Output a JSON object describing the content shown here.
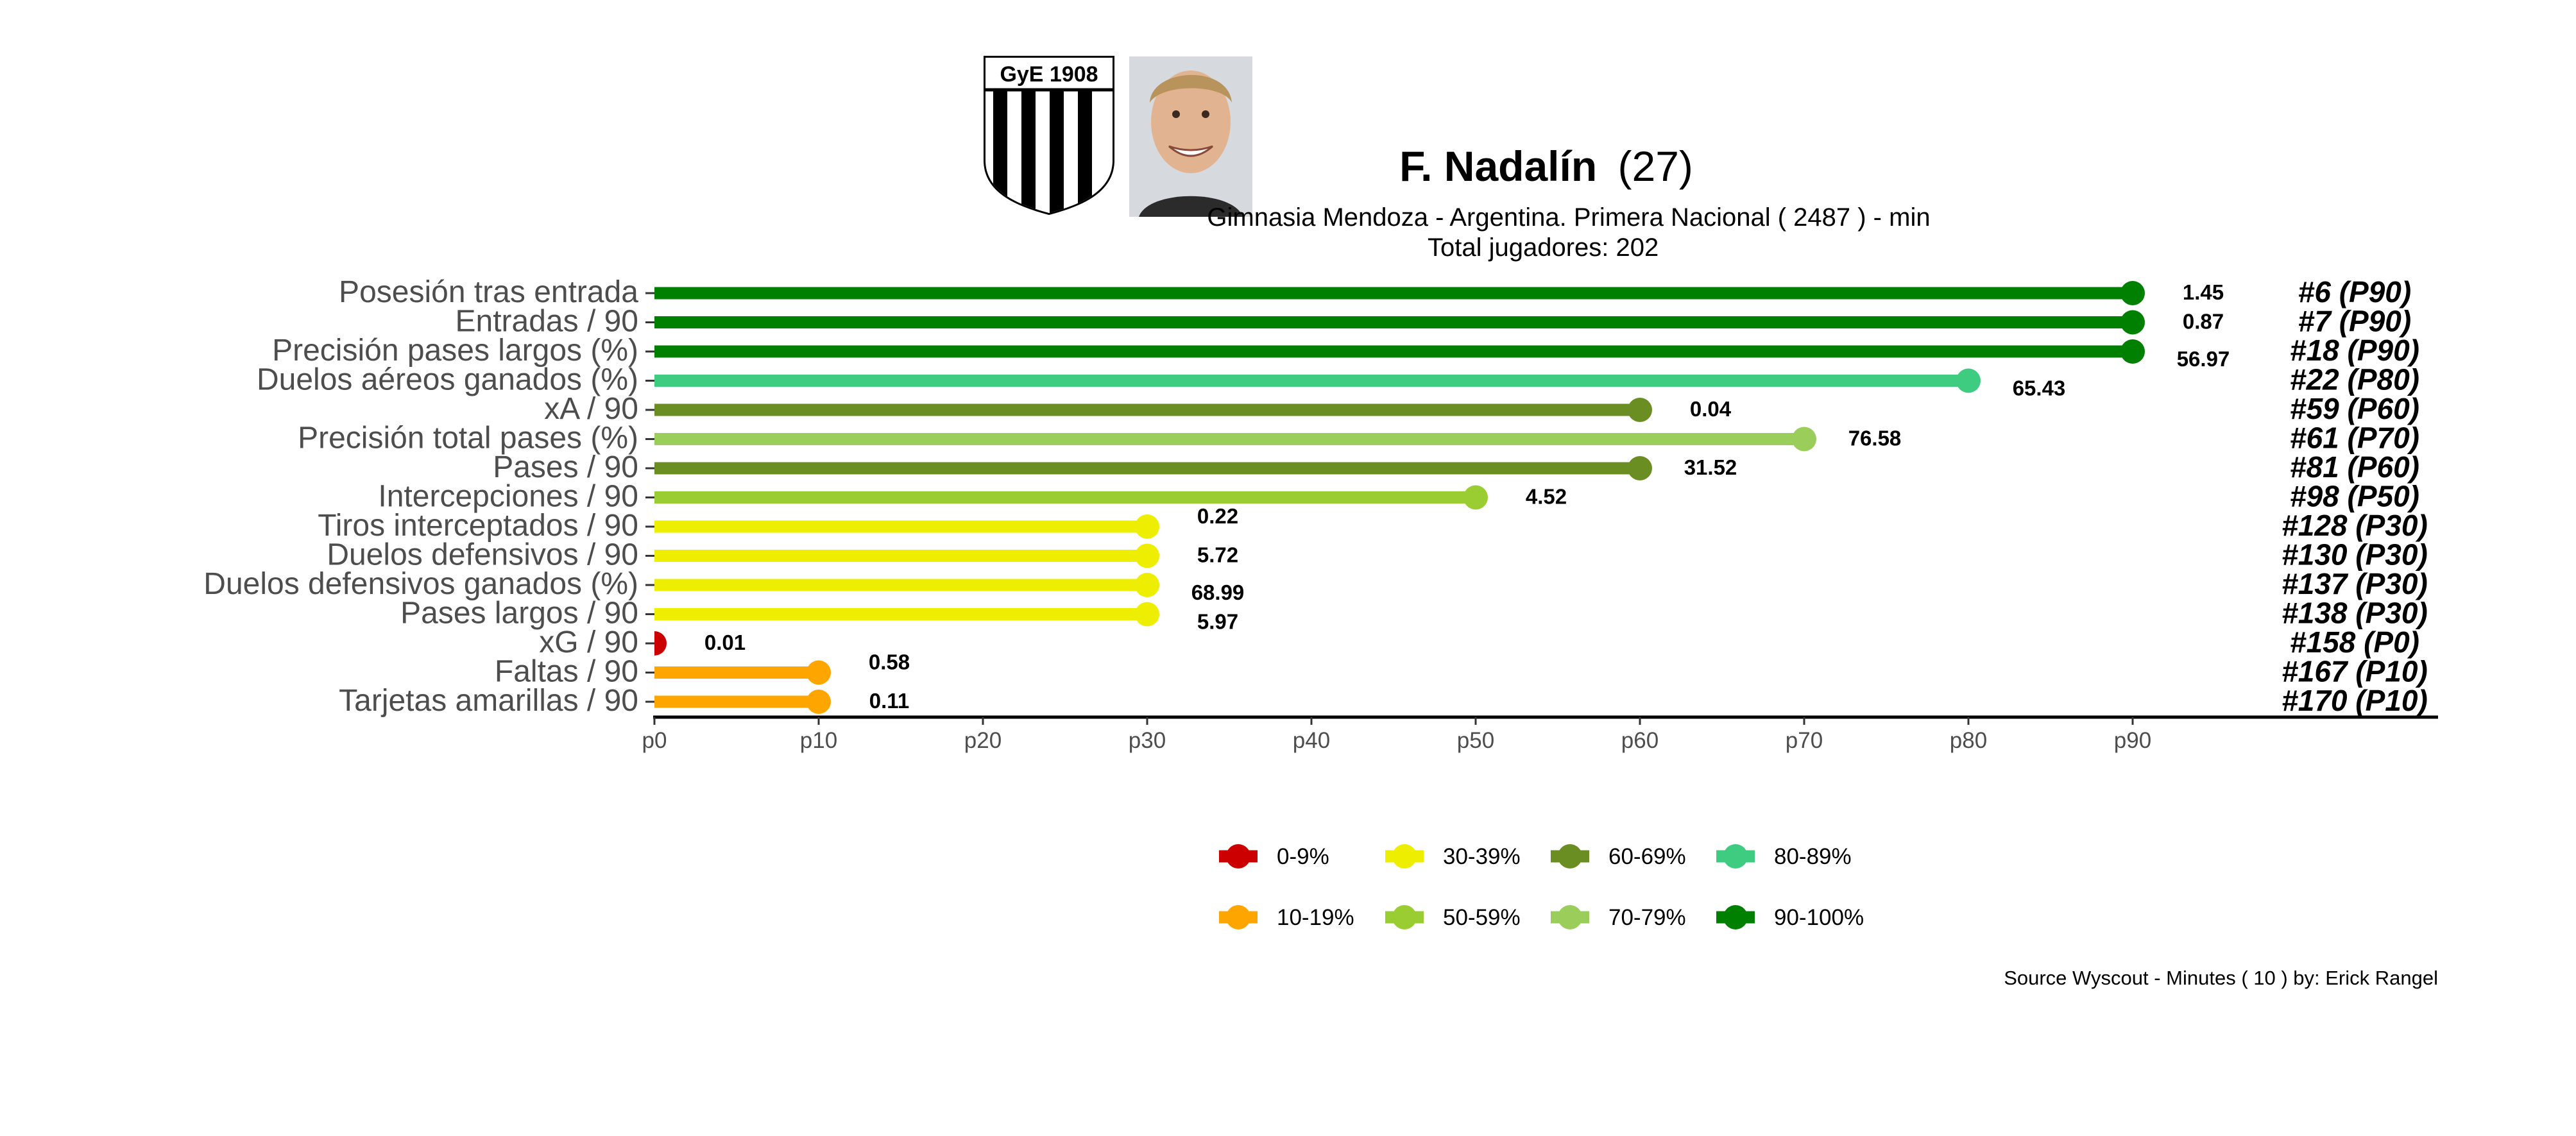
{
  "header": {
    "player_name": "F. Nadalín",
    "player_age": "(27)",
    "subtitle_line1": "Gimnasia Mendoza  -  Argentina. Primera Nacional  ( 2487 ) - min",
    "subtitle_line2": "Total jugadores:  202",
    "crest_text": "GyE 1908"
  },
  "source_note": "Source Wyscout - Minutes ( 10 ) by: Erick Rangel",
  "chart_data": {
    "type": "bar",
    "orientation": "horizontal",
    "style": "lollipop",
    "xlim": [
      0,
      90
    ],
    "x_ticks": [
      "p0",
      "p10",
      "p20",
      "p30",
      "p40",
      "p50",
      "p60",
      "p70",
      "p80",
      "p90"
    ],
    "x_tick_values": [
      0,
      10,
      20,
      30,
      40,
      50,
      60,
      70,
      80,
      90
    ],
    "grid": false,
    "legend_position": "bottom",
    "categories": [
      "Posesión tras entrada",
      "Entradas / 90",
      "Precisión pases largos (%)",
      "Duelos aéreos ganados (%)",
      "xA / 90",
      "Precisión total pases (%)",
      "Pases / 90",
      "Intercepciones / 90",
      "Tiros interceptados / 90",
      "Duelos defensivos / 90",
      "Duelos defensivos ganados (%)",
      "Pases largos / 90",
      "xG / 90",
      "Faltas / 90",
      "Tarjetas amarillas / 90"
    ],
    "percentiles": [
      90,
      90,
      90,
      80,
      60,
      70,
      60,
      50,
      30,
      30,
      30,
      30,
      0,
      10,
      10
    ],
    "value_labels": [
      "1.45",
      "0.87",
      "56.97",
      "65.43",
      "0.04",
      "76.58",
      "31.52",
      "4.52",
      "0.22",
      "5.72",
      "68.99",
      "5.97",
      "0.01",
      "0.58",
      "0.11"
    ],
    "rank_labels": [
      "#6 (P90)",
      "#7 (P90)",
      "#18 (P90)",
      "#22 (P80)",
      "#59 (P60)",
      "#61 (P70)",
      "#81 (P60)",
      "#98 (P50)",
      "#128 (P30)",
      "#130 (P30)",
      "#137 (P30)",
      "#138 (P30)",
      "#158 (P0)",
      "#167 (P10)",
      "#170 (P10)"
    ],
    "colors": [
      "#008000",
      "#008000",
      "#008000",
      "#3ECC80",
      "#6B8E23",
      "#9ACD5A",
      "#6B8E23",
      "#9ACD32",
      "#EEEE00",
      "#EEEE00",
      "#EEEE00",
      "#EEEE00",
      "#CC0000",
      "#FFA500",
      "#FFA500"
    ],
    "legend": [
      {
        "label": "0-9%",
        "color": "#CC0000"
      },
      {
        "label": "10-19%",
        "color": "#FFA500"
      },
      {
        "label": "30-39%",
        "color": "#EEEE00"
      },
      {
        "label": "50-59%",
        "color": "#9ACD32"
      },
      {
        "label": "60-69%",
        "color": "#6B8E23"
      },
      {
        "label": "70-79%",
        "color": "#9ACD5A"
      },
      {
        "label": "80-89%",
        "color": "#3ECC80"
      },
      {
        "label": "90-100%",
        "color": "#008000"
      }
    ]
  }
}
